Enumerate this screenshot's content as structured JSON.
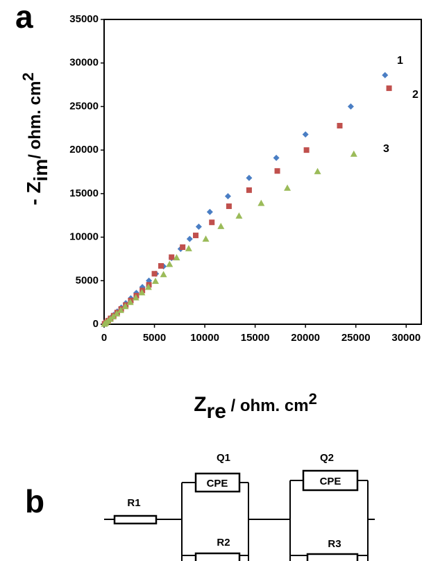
{
  "panel_labels": [
    "a",
    "b"
  ],
  "chart_data": {
    "type": "scatter",
    "xlabel": {
      "main": "Z",
      "sub": "re",
      "unit": " / ohm. cm",
      "sup": "2"
    },
    "ylabel": {
      "main": "- Z",
      "sub": "im",
      "unit": "/ ohm. cm",
      "sup": "2"
    },
    "xlim": [
      0,
      31500
    ],
    "ylim": [
      0,
      35000
    ],
    "xticks": [
      0,
      5000,
      10000,
      15000,
      20000,
      25000,
      30000
    ],
    "yticks": [
      0,
      5000,
      10000,
      15000,
      20000,
      25000,
      30000,
      35000
    ],
    "series": [
      {
        "name": "1",
        "color": "#4a7ec4",
        "marker": "diamond",
        "x": [
          50,
          200,
          400,
          650,
          950,
          1300,
          1700,
          2150,
          2650,
          3200,
          3800,
          4450,
          5150,
          5900,
          6700,
          7600,
          8500,
          9400,
          10500,
          12300,
          14400,
          17100,
          20000,
          24500,
          27900
        ],
        "values": [
          60,
          230,
          450,
          730,
          1070,
          1460,
          1910,
          2420,
          2980,
          3600,
          4270,
          5000,
          5800,
          6650,
          7600,
          8650,
          9800,
          11200,
          12900,
          14700,
          16800,
          19100,
          21800,
          25000,
          28600
        ]
      },
      {
        "name": "2",
        "color": "#c0504d",
        "marker": "square",
        "x": [
          50,
          200,
          400,
          650,
          950,
          1300,
          1700,
          2150,
          2650,
          3200,
          3800,
          4450,
          5000,
          5650,
          6700,
          7800,
          9100,
          10700,
          12400,
          14400,
          17200,
          20100,
          23400,
          28300
        ],
        "values": [
          50,
          200,
          410,
          670,
          980,
          1340,
          1750,
          2200,
          2720,
          3280,
          3880,
          4530,
          5800,
          6700,
          7700,
          8850,
          10200,
          11700,
          13550,
          15400,
          17600,
          20000,
          22800,
          27100
        ]
      },
      {
        "name": "3",
        "color": "#9bbb59",
        "marker": "triangle",
        "x": [
          30,
          150,
          350,
          600,
          900,
          1250,
          1650,
          2100,
          2600,
          3150,
          3750,
          4400,
          5100,
          5900,
          6500,
          7200,
          8400,
          10100,
          11600,
          13400,
          15600,
          18200,
          21200,
          24800
        ],
        "values": [
          30,
          140,
          340,
          590,
          880,
          1220,
          1610,
          2050,
          2530,
          3060,
          3640,
          4270,
          4950,
          5720,
          6900,
          7650,
          8700,
          9800,
          11250,
          12450,
          13900,
          15650,
          17550,
          19550
        ]
      }
    ]
  },
  "diagram": {
    "R1": "R1",
    "Q1": "Q1",
    "CPE1": "CPE",
    "R2": "R2",
    "Q2": "Q2",
    "CPE2": "CPE",
    "R3": "R3"
  }
}
